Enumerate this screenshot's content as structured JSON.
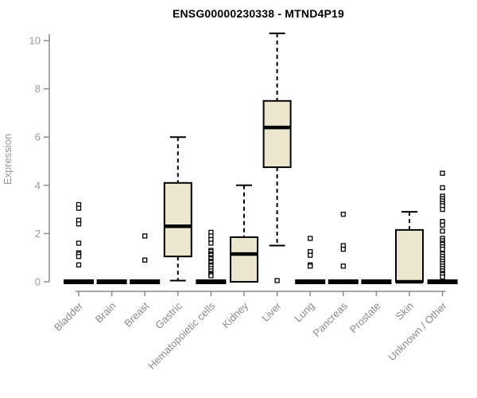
{
  "chart_data": {
    "type": "boxplot",
    "title": "ENSG00000230338 - MTND4P19",
    "ylabel": "Expression",
    "xlabel": "",
    "ylim": [
      0,
      10
    ],
    "yticks": [
      0,
      2,
      4,
      6,
      8,
      10
    ],
    "grid": false,
    "legend": "none",
    "categories": [
      "Bladder",
      "Brain",
      "Breast",
      "Gastric",
      "Hematopoietic cells",
      "Kidney",
      "Liver",
      "Lung",
      "Pancreas",
      "Prostate",
      "Skin",
      "Unknown / Other"
    ],
    "series": [
      {
        "name": "Bladder",
        "q1": 0,
        "median": 0,
        "q3": 0,
        "whisker_low": 0,
        "whisker_high": 0,
        "outliers": [
          3.2,
          3.05,
          2.55,
          2.4,
          1.6,
          1.2,
          1.15,
          1.05,
          0.7
        ]
      },
      {
        "name": "Brain",
        "q1": 0,
        "median": 0,
        "q3": 0,
        "whisker_low": 0,
        "whisker_high": 0,
        "outliers": []
      },
      {
        "name": "Breast",
        "q1": 0,
        "median": 0,
        "q3": 0,
        "whisker_low": 0,
        "whisker_high": 0,
        "outliers": [
          1.9,
          0.9
        ]
      },
      {
        "name": "Gastric",
        "q1": 1.05,
        "median": 2.3,
        "q3": 4.1,
        "whisker_low": 0.05,
        "whisker_high": 6.0,
        "outliers": []
      },
      {
        "name": "Hematopoietic cells",
        "q1": 0,
        "median": 0,
        "q3": 0,
        "whisker_low": 0,
        "whisker_high": 0,
        "outliers": [
          2.05,
          1.9,
          1.75,
          1.6,
          1.3,
          1.25,
          1.15,
          1.1,
          1.0,
          0.95,
          0.85,
          0.8,
          0.7,
          0.65,
          0.55,
          0.45,
          0.35,
          0.3,
          0.25
        ]
      },
      {
        "name": "Kidney",
        "q1": 0,
        "median": 1.15,
        "q3": 1.85,
        "whisker_low": 0,
        "whisker_high": 4.0,
        "outliers": []
      },
      {
        "name": "Liver",
        "q1": 4.75,
        "median": 6.4,
        "q3": 7.5,
        "whisker_low": 1.5,
        "whisker_high": 10.3,
        "outliers": [
          0.05
        ]
      },
      {
        "name": "Lung",
        "q1": 0,
        "median": 0,
        "q3": 0,
        "whisker_low": 0,
        "whisker_high": 0,
        "outliers": [
          1.8,
          1.25,
          1.1,
          0.7,
          0.65
        ]
      },
      {
        "name": "Pancreas",
        "q1": 0,
        "median": 0,
        "q3": 0,
        "whisker_low": 0,
        "whisker_high": 0,
        "outliers": [
          2.8,
          1.5,
          1.35,
          0.65
        ]
      },
      {
        "name": "Prostate",
        "q1": 0,
        "median": 0,
        "q3": 0,
        "whisker_low": 0,
        "whisker_high": 0,
        "outliers": []
      },
      {
        "name": "Skin",
        "q1": 0,
        "median": 0,
        "q3": 2.15,
        "whisker_low": 0,
        "whisker_high": 2.9,
        "outliers": []
      },
      {
        "name": "Unknown / Other",
        "q1": 0,
        "median": 0,
        "q3": 0,
        "whisker_low": 0,
        "whisker_high": 0,
        "outliers": [
          4.5,
          3.9,
          3.55,
          3.45,
          3.35,
          3.25,
          3.15,
          3.0,
          2.5,
          2.35,
          2.1,
          1.8,
          1.7,
          1.6,
          1.55,
          1.45,
          1.35,
          1.15,
          1.05,
          0.95,
          0.85,
          0.75,
          0.65,
          0.55,
          0.45,
          0.35,
          0.3,
          0.2
        ]
      }
    ],
    "colors": {
      "box_fill": "#EDE6CF",
      "box_line": "#000000",
      "median_line": "#000000",
      "zero_bar": "#000000",
      "outlier_fill": "#FFFFFF",
      "outlier_stroke": "#000000",
      "axis": "#8C8C8C",
      "tick_text": "#9A9A9A",
      "category_text": "#8C8C8C",
      "title_text": "#000000",
      "background": "#FFFFFF"
    }
  }
}
